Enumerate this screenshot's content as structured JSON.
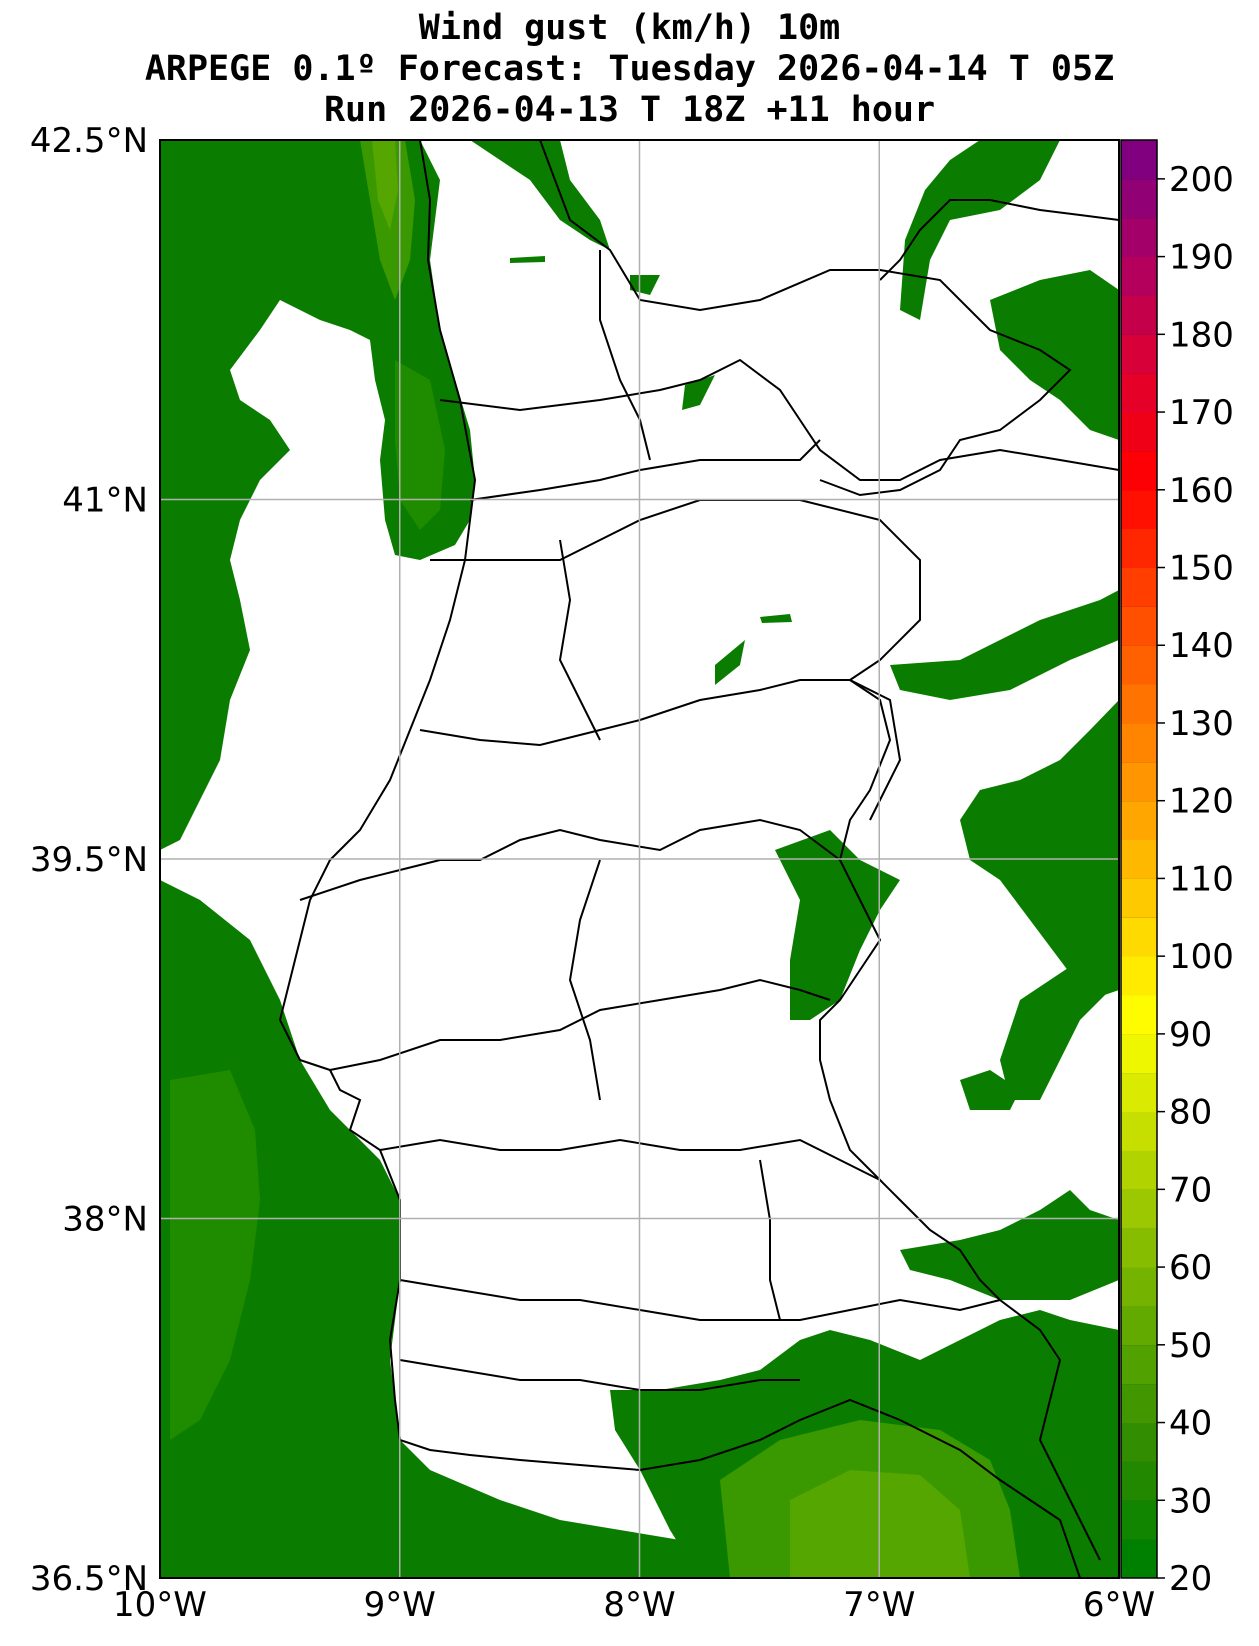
{
  "title": {
    "line1": "Wind gust (km/h) 10m",
    "line2": "ARPEGE 0.1º Forecast: Tuesday 2026-04-14 T 05Z",
    "line3": "Run 2026-04-13 T 18Z +11 hour"
  },
  "map": {
    "lon_range": [
      -10,
      -6
    ],
    "lat_range": [
      36.5,
      42.5
    ],
    "lat_ticks": [
      {
        "value": 42.5,
        "label": "42.5°N"
      },
      {
        "value": 41.0,
        "label": "41°N"
      },
      {
        "value": 39.5,
        "label": "39.5°N"
      },
      {
        "value": 38.0,
        "label": "38°N"
      },
      {
        "value": 36.5,
        "label": "36.5°N"
      }
    ],
    "lon_ticks": [
      {
        "value": -10,
        "label": "10°W"
      },
      {
        "value": -9,
        "label": "9°W"
      },
      {
        "value": -8,
        "label": "8°W"
      },
      {
        "value": -7,
        "label": "7°W"
      },
      {
        "value": -6,
        "label": "6°W"
      }
    ],
    "gridlines": true,
    "colors": {
      "level_20_25": "#0a7d00",
      "level_25_30": "#1f8c00",
      "level_30_35": "#3a9900",
      "level_35_40": "#55a600",
      "borders": "#000000",
      "grid": "#b0b0b0"
    }
  },
  "colorbar": {
    "min": 20,
    "max": 205,
    "step": 5,
    "ticks": [
      20,
      30,
      40,
      50,
      60,
      70,
      80,
      90,
      100,
      110,
      120,
      130,
      140,
      150,
      160,
      170,
      180,
      190,
      200
    ],
    "tick_labels": [
      "20",
      "30",
      "40",
      "50",
      "60",
      "70",
      "80",
      "90",
      "100",
      "110",
      "120",
      "130",
      "140",
      "150",
      "160",
      "170",
      "180",
      "190",
      "200"
    ],
    "colormap": [
      "#008000",
      "#2e8b00",
      "#5aa600",
      "#8cc000",
      "#c8e000",
      "#ffff00",
      "#ffd000",
      "#ffa000",
      "#ff7000",
      "#ff4000",
      "#ff0000",
      "#e00030",
      "#b00060",
      "#800080"
    ]
  }
}
